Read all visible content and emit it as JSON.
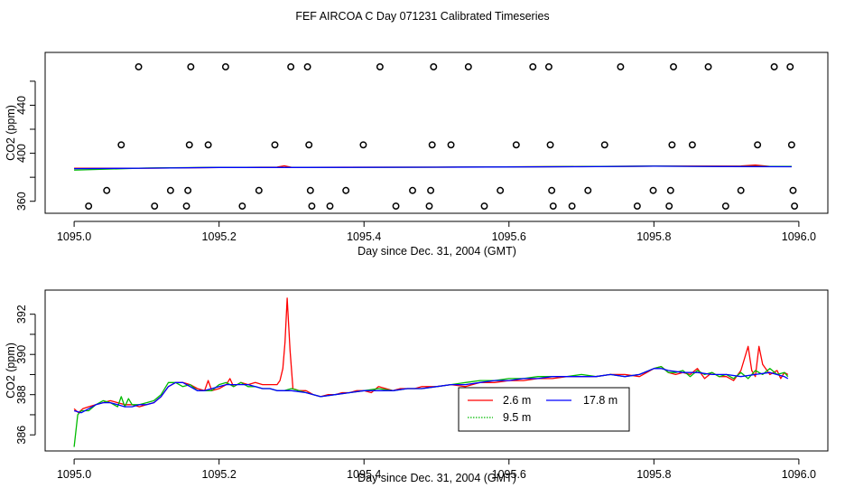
{
  "title": "FEF AIRCOA C  Day 071231  Calibrated Timeseries",
  "colors": {
    "ch2_6": "#ff0000",
    "ch9_5": "#00bb00",
    "ch17_8": "#0000ff",
    "axes": "#000000"
  },
  "chart_data": [
    {
      "type": "scatter+line",
      "name": "top",
      "xlabel": "Day since Dec. 31, 2004 (GMT)",
      "ylabel": "CO2 (ppm)",
      "xlim": [
        1094.96,
        1096.04
      ],
      "ylim": [
        350,
        484
      ],
      "xticks": [
        1095.0,
        1095.2,
        1095.4,
        1095.6,
        1095.8,
        1096.0
      ],
      "xtick_labels": [
        "1095.0",
        "1095.2",
        "1095.4",
        "1095.6",
        "1095.8",
        "1096.0"
      ],
      "yticks": [
        360,
        380,
        400,
        420,
        440,
        460
      ],
      "ytick_labels": [
        "360",
        "400",
        "440"
      ],
      "ytick_label_values": [
        360,
        400,
        440
      ],
      "calibration_points": [
        {
          "x": 1095.02,
          "y": 356
        },
        {
          "x": 1095.045,
          "y": 369
        },
        {
          "x": 1095.065,
          "y": 407
        },
        {
          "x": 1095.089,
          "y": 472
        },
        {
          "x": 1095.111,
          "y": 356
        },
        {
          "x": 1095.133,
          "y": 369
        },
        {
          "x": 1095.155,
          "y": 356
        },
        {
          "x": 1095.157,
          "y": 369
        },
        {
          "x": 1095.159,
          "y": 407
        },
        {
          "x": 1095.161,
          "y": 472
        },
        {
          "x": 1095.185,
          "y": 407
        },
        {
          "x": 1095.209,
          "y": 472
        },
        {
          "x": 1095.232,
          "y": 356
        },
        {
          "x": 1095.255,
          "y": 369
        },
        {
          "x": 1095.277,
          "y": 407
        },
        {
          "x": 1095.299,
          "y": 472
        },
        {
          "x": 1095.322,
          "y": 472
        },
        {
          "x": 1095.324,
          "y": 407
        },
        {
          "x": 1095.326,
          "y": 369
        },
        {
          "x": 1095.328,
          "y": 356
        },
        {
          "x": 1095.353,
          "y": 356
        },
        {
          "x": 1095.375,
          "y": 369
        },
        {
          "x": 1095.399,
          "y": 407
        },
        {
          "x": 1095.422,
          "y": 472
        },
        {
          "x": 1095.444,
          "y": 356
        },
        {
          "x": 1095.467,
          "y": 369
        },
        {
          "x": 1095.49,
          "y": 356
        },
        {
          "x": 1095.492,
          "y": 369
        },
        {
          "x": 1095.494,
          "y": 407
        },
        {
          "x": 1095.496,
          "y": 472
        },
        {
          "x": 1095.52,
          "y": 407
        },
        {
          "x": 1095.544,
          "y": 472
        },
        {
          "x": 1095.566,
          "y": 356
        },
        {
          "x": 1095.588,
          "y": 369
        },
        {
          "x": 1095.61,
          "y": 407
        },
        {
          "x": 1095.633,
          "y": 472
        },
        {
          "x": 1095.655,
          "y": 472
        },
        {
          "x": 1095.657,
          "y": 407
        },
        {
          "x": 1095.659,
          "y": 369
        },
        {
          "x": 1095.661,
          "y": 356
        },
        {
          "x": 1095.687,
          "y": 356
        },
        {
          "x": 1095.709,
          "y": 369
        },
        {
          "x": 1095.732,
          "y": 407
        },
        {
          "x": 1095.754,
          "y": 472
        },
        {
          "x": 1095.777,
          "y": 356
        },
        {
          "x": 1095.799,
          "y": 369
        },
        {
          "x": 1095.821,
          "y": 356
        },
        {
          "x": 1095.823,
          "y": 369
        },
        {
          "x": 1095.825,
          "y": 407
        },
        {
          "x": 1095.827,
          "y": 472
        },
        {
          "x": 1095.853,
          "y": 407
        },
        {
          "x": 1095.875,
          "y": 472
        },
        {
          "x": 1095.899,
          "y": 356
        },
        {
          "x": 1095.92,
          "y": 369
        },
        {
          "x": 1095.943,
          "y": 407
        },
        {
          "x": 1095.966,
          "y": 472
        },
        {
          "x": 1095.988,
          "y": 472
        },
        {
          "x": 1095.99,
          "y": 407
        },
        {
          "x": 1095.992,
          "y": 369
        },
        {
          "x": 1095.994,
          "y": 356
        }
      ],
      "series": [
        {
          "name": "2.6 m",
          "color": "#ff0000",
          "x": [
            1095.0,
            1095.1,
            1095.2,
            1095.28,
            1095.29,
            1095.3,
            1095.32,
            1095.5,
            1095.7,
            1095.8,
            1095.92,
            1095.94,
            1095.96,
            1095.99
          ],
          "y": [
            387.5,
            387.6,
            388.2,
            388.5,
            389.5,
            388.3,
            388.3,
            388.4,
            388.9,
            389.2,
            389.4,
            390.1,
            389.0,
            388.9
          ]
        },
        {
          "name": "9.5 m",
          "color": "#00bb00",
          "x": [
            1095.0,
            1095.1,
            1095.2,
            1095.3,
            1095.5,
            1095.7,
            1095.8,
            1095.9,
            1095.99
          ],
          "y": [
            386.0,
            387.7,
            388.3,
            388.2,
            388.4,
            388.9,
            389.3,
            389.0,
            389.0
          ]
        },
        {
          "name": "17.8 m",
          "color": "#0000ff",
          "x": [
            1095.0,
            1095.1,
            1095.2,
            1095.3,
            1095.5,
            1095.7,
            1095.8,
            1095.9,
            1095.99
          ],
          "y": [
            387.2,
            387.6,
            388.2,
            388.2,
            388.4,
            388.8,
            389.2,
            388.9,
            388.8
          ]
        }
      ]
    },
    {
      "type": "line",
      "name": "bottom",
      "xlabel": "Day since Dec. 31, 2004 (GMT)",
      "ylabel": "CO2 (ppm)",
      "xlim": [
        1094.96,
        1096.04
      ],
      "ylim": [
        385.2,
        393.2
      ],
      "xticks": [
        1095.0,
        1095.2,
        1095.4,
        1095.6,
        1095.8,
        1096.0
      ],
      "xtick_labels": [
        "1095.0",
        "1095.2",
        "1095.4",
        "1095.6",
        "1095.8",
        "1096.0"
      ],
      "yticks": [
        386,
        387,
        388,
        389,
        390,
        391,
        392
      ],
      "ytick_labels": [
        "386",
        "388",
        "390",
        "392"
      ],
      "ytick_label_values": [
        386,
        388,
        390,
        392
      ],
      "legend": {
        "position": "bottom-center",
        "entries": [
          "2.6 m",
          "17.8 m",
          "9.5 m"
        ],
        "entry_keys": [
          "ch2_6",
          "ch17_8",
          "ch9_5"
        ]
      },
      "series": [
        {
          "name": "2.6 m",
          "color": "#ff0000",
          "x": [
            1095.0,
            1095.006,
            1095.012,
            1095.02,
            1095.03,
            1095.04,
            1095.05,
            1095.06,
            1095.07,
            1095.08,
            1095.09,
            1095.1,
            1095.11,
            1095.12,
            1095.13,
            1095.14,
            1095.15,
            1095.16,
            1095.17,
            1095.18,
            1095.185,
            1095.19,
            1095.2,
            1095.21,
            1095.215,
            1095.22,
            1095.23,
            1095.24,
            1095.25,
            1095.26,
            1095.27,
            1095.28,
            1095.284,
            1095.288,
            1095.291,
            1095.294,
            1095.298,
            1095.302,
            1095.31,
            1095.32,
            1095.33,
            1095.34,
            1095.35,
            1095.36,
            1095.37,
            1095.38,
            1095.39,
            1095.4,
            1095.41,
            1095.42,
            1095.43,
            1095.44,
            1095.45,
            1095.46,
            1095.47,
            1095.48,
            1095.49,
            1095.5,
            1095.52,
            1095.54,
            1095.56,
            1095.58,
            1095.6,
            1095.62,
            1095.64,
            1095.66,
            1095.68,
            1095.7,
            1095.72,
            1095.74,
            1095.76,
            1095.78,
            1095.8,
            1095.81,
            1095.82,
            1095.83,
            1095.84,
            1095.85,
            1095.86,
            1095.87,
            1095.88,
            1095.89,
            1095.9,
            1095.91,
            1095.92,
            1095.93,
            1095.935,
            1095.94,
            1095.945,
            1095.95,
            1095.96,
            1095.97,
            1095.975,
            1095.98,
            1095.985
          ],
          "y": [
            387.3,
            387.1,
            387.3,
            387.4,
            387.5,
            387.6,
            387.7,
            387.6,
            387.5,
            387.5,
            387.4,
            387.5,
            387.6,
            387.9,
            388.4,
            388.6,
            388.6,
            388.5,
            388.3,
            388.2,
            388.7,
            388.2,
            388.3,
            388.5,
            388.8,
            388.4,
            388.6,
            388.5,
            388.6,
            388.5,
            388.5,
            388.5,
            388.7,
            389.3,
            390.6,
            392.8,
            390.2,
            388.3,
            388.2,
            388.2,
            388.0,
            387.9,
            388.0,
            388.0,
            388.1,
            388.1,
            388.2,
            388.2,
            388.1,
            388.4,
            388.3,
            388.2,
            388.3,
            388.3,
            388.3,
            388.4,
            388.4,
            388.4,
            388.5,
            388.4,
            388.6,
            388.6,
            388.7,
            388.7,
            388.8,
            388.8,
            388.9,
            388.9,
            388.9,
            389.0,
            389.0,
            388.9,
            389.3,
            389.4,
            389.1,
            389.0,
            389.1,
            389.0,
            389.3,
            388.8,
            389.1,
            388.9,
            388.9,
            388.7,
            389.2,
            390.4,
            389.2,
            388.9,
            390.4,
            389.5,
            389.0,
            389.2,
            388.8,
            389.1,
            389.0
          ]
        },
        {
          "name": "9.5 m",
          "color": "#00bb00",
          "x": [
            1095.0,
            1095.005,
            1095.01,
            1095.02,
            1095.03,
            1095.04,
            1095.05,
            1095.06,
            1095.065,
            1095.07,
            1095.075,
            1095.08,
            1095.09,
            1095.1,
            1095.11,
            1095.12,
            1095.13,
            1095.14,
            1095.15,
            1095.16,
            1095.17,
            1095.18,
            1095.19,
            1095.2,
            1095.21,
            1095.22,
            1095.23,
            1095.24,
            1095.25,
            1095.26,
            1095.27,
            1095.28,
            1095.29,
            1095.3,
            1095.32,
            1095.34,
            1095.36,
            1095.38,
            1095.4,
            1095.42,
            1095.44,
            1095.46,
            1095.48,
            1095.5,
            1095.52,
            1095.54,
            1095.56,
            1095.58,
            1095.6,
            1095.62,
            1095.64,
            1095.66,
            1095.68,
            1095.7,
            1095.72,
            1095.74,
            1095.76,
            1095.78,
            1095.8,
            1095.81,
            1095.82,
            1095.83,
            1095.84,
            1095.85,
            1095.86,
            1095.87,
            1095.88,
            1095.89,
            1095.9,
            1095.91,
            1095.92,
            1095.93,
            1095.94,
            1095.95,
            1095.96,
            1095.97,
            1095.98,
            1095.985
          ],
          "y": [
            385.4,
            387.0,
            387.2,
            387.2,
            387.5,
            387.7,
            387.6,
            387.4,
            387.9,
            387.4,
            387.8,
            387.5,
            387.5,
            387.6,
            387.7,
            388.0,
            388.6,
            388.6,
            388.4,
            388.5,
            388.2,
            388.2,
            388.2,
            388.5,
            388.6,
            388.4,
            388.6,
            388.4,
            388.4,
            388.3,
            388.3,
            388.2,
            388.2,
            388.3,
            388.1,
            387.9,
            388.0,
            388.1,
            388.2,
            388.3,
            388.2,
            388.3,
            388.3,
            388.4,
            388.5,
            388.6,
            388.7,
            388.7,
            388.8,
            388.8,
            388.9,
            388.9,
            388.9,
            389.0,
            388.9,
            389.0,
            388.9,
            389.0,
            389.3,
            389.4,
            389.1,
            389.1,
            389.2,
            388.9,
            389.2,
            389.0,
            389.1,
            388.9,
            389.0,
            388.8,
            389.1,
            388.8,
            389.2,
            389.0,
            389.3,
            389.0,
            389.1,
            388.9
          ]
        },
        {
          "name": "17.8 m",
          "color": "#0000ff",
          "x": [
            1095.0,
            1095.01,
            1095.02,
            1095.03,
            1095.04,
            1095.05,
            1095.06,
            1095.07,
            1095.08,
            1095.09,
            1095.1,
            1095.11,
            1095.12,
            1095.13,
            1095.14,
            1095.15,
            1095.16,
            1095.17,
            1095.18,
            1095.19,
            1095.2,
            1095.21,
            1095.22,
            1095.23,
            1095.24,
            1095.25,
            1095.26,
            1095.27,
            1095.28,
            1095.29,
            1095.3,
            1095.32,
            1095.34,
            1095.36,
            1095.38,
            1095.4,
            1095.42,
            1095.44,
            1095.46,
            1095.48,
            1095.5,
            1095.52,
            1095.54,
            1095.56,
            1095.58,
            1095.6,
            1095.62,
            1095.64,
            1095.66,
            1095.68,
            1095.7,
            1095.72,
            1095.74,
            1095.76,
            1095.78,
            1095.8,
            1095.81,
            1095.82,
            1095.84,
            1095.86,
            1095.88,
            1095.9,
            1095.92,
            1095.94,
            1095.96,
            1095.98,
            1095.985
          ],
          "y": [
            387.2,
            387.1,
            387.3,
            387.5,
            387.6,
            387.6,
            387.5,
            387.4,
            387.4,
            387.5,
            387.5,
            387.6,
            387.9,
            388.4,
            388.6,
            388.6,
            388.4,
            388.2,
            388.2,
            388.3,
            388.4,
            388.5,
            388.5,
            388.5,
            388.5,
            388.4,
            388.3,
            388.3,
            388.2,
            388.2,
            388.2,
            388.1,
            387.9,
            388.0,
            388.1,
            388.2,
            388.2,
            388.2,
            388.3,
            388.3,
            388.4,
            388.5,
            388.5,
            388.6,
            388.7,
            388.7,
            388.8,
            388.8,
            388.9,
            388.9,
            388.9,
            388.9,
            389.0,
            388.9,
            389.0,
            389.3,
            389.3,
            389.2,
            389.1,
            389.1,
            389.0,
            389.0,
            388.9,
            389.0,
            389.1,
            388.9,
            388.8
          ]
        }
      ]
    }
  ]
}
